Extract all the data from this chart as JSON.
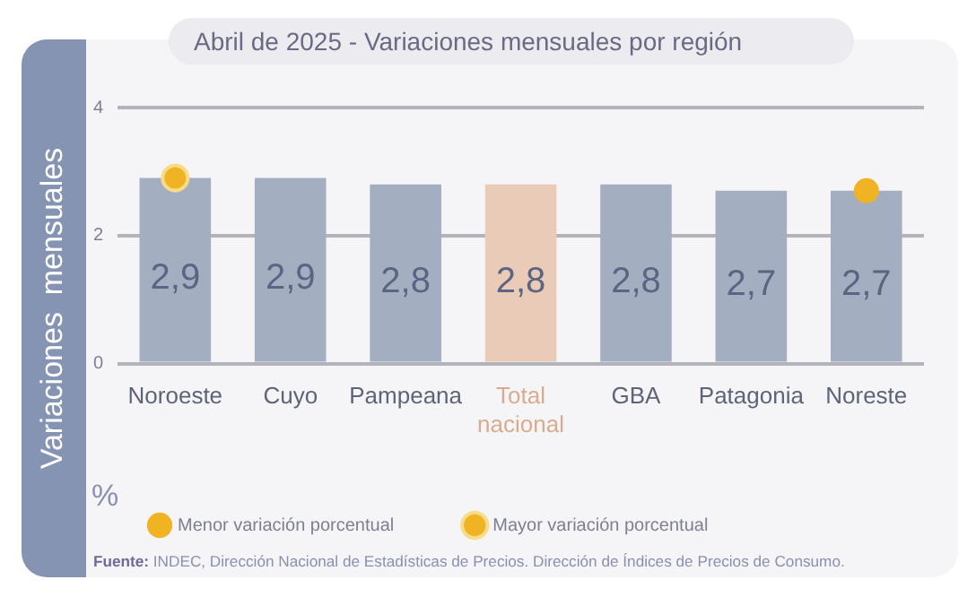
{
  "chart_data": {
    "type": "bar",
    "title": "Abril de 2025 - Variaciones mensuales por región",
    "ylabel": "Variaciones  mensuales",
    "categories": [
      "Noroeste",
      "Cuyo",
      "Pampeana",
      "Total nacional",
      "GBA",
      "Patagonia",
      "Noreste"
    ],
    "series": [
      {
        "colors": [
          "#a3afc0",
          "#a3afc0",
          "#a3afc0",
          "#e9cbb7",
          "#a3afc0",
          "#a3afc0",
          "#a3afc0"
        ],
        "values": [
          2.9,
          2.9,
          2.8,
          2.8,
          2.8,
          2.7,
          2.7
        ],
        "value_labels": [
          "2,9",
          "2,9",
          "2,8",
          "2,8",
          "2,8",
          "2,7",
          "2,7"
        ]
      },
      {
        "type": "scatter",
        "name": "Menor variación porcentual",
        "color": "#f0b323",
        "x": [
          "Noreste"
        ],
        "values": [
          2.7
        ]
      },
      {
        "type": "scatter",
        "name": "Mayor variación porcentual",
        "color": "#f0b323",
        "x": [
          "Noroeste"
        ],
        "values": [
          2.9
        ]
      }
    ],
    "ylim": [
      0,
      4
    ],
    "yticks": [
      0,
      2,
      4
    ],
    "grid": "y",
    "legend": "bottom",
    "marker": "circle",
    "annotations": [
      "%",
      "Fuente: INDEC, Dirección Nacional de Estadísticas de Precios. Dirección de Índices de Precios de Consumo."
    ]
  }
}
